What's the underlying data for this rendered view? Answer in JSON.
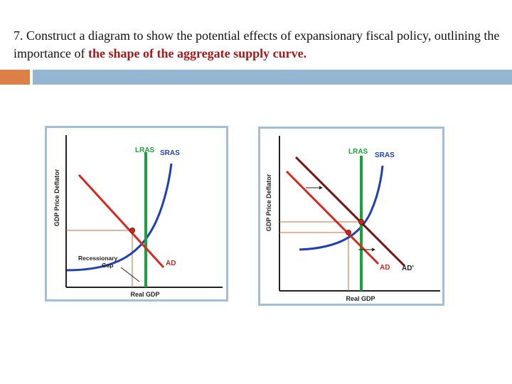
{
  "title": {
    "prefix": "7. Construct a diagram to show the potential effects of expansionary fiscal policy, outlining the importance of ",
    "highlight": "the shape of the aggregate supply curve."
  },
  "colors": {
    "accent_orange": "#dd8047",
    "accent_blue": "#94b6d2",
    "panel_border": "#a3bfd6",
    "highlight_text": "#a5191b",
    "lras": "#1aa33a",
    "sras": "#1f3fb5",
    "ad": "#d42a1f",
    "ad_shifted": "#7a1010",
    "guide": "#c8683a"
  },
  "left_diagram": {
    "y_axis": "GDP Price Deflator",
    "x_axis": "Real GDP",
    "lras": "LRAS",
    "sras": "SRAS",
    "ad": "AD",
    "gap": "Recessionary Gap"
  },
  "right_diagram": {
    "y_axis": "GDP Price Deflator",
    "x_axis": "Real GDP",
    "lras": "LRAS",
    "sras": "SRAS",
    "ad": "AD",
    "ad_shifted": "AD'"
  }
}
